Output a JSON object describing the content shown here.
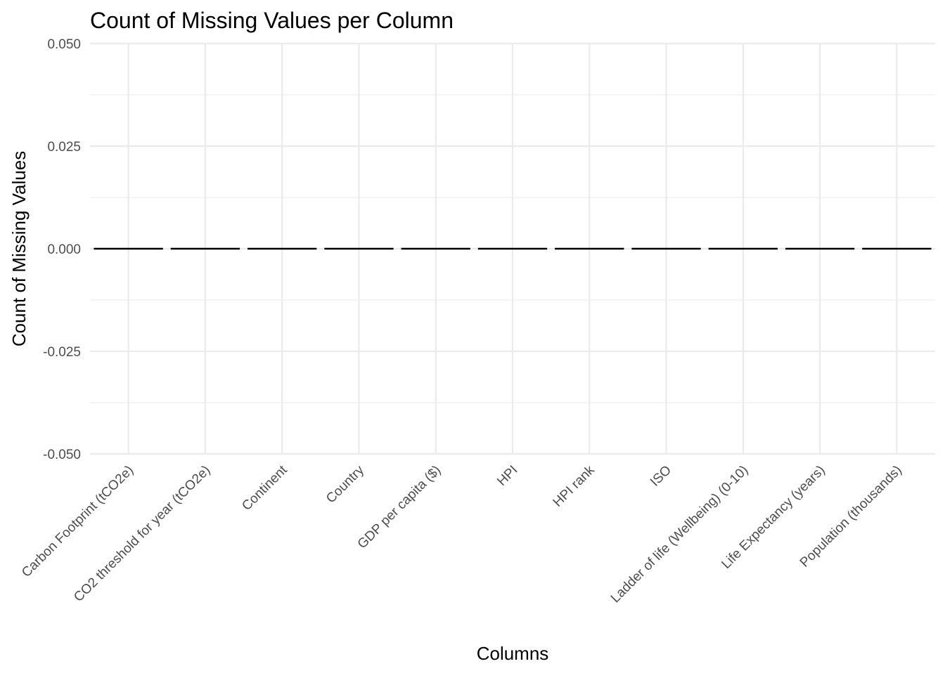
{
  "chart_data": {
    "type": "bar",
    "title": "Count of Missing Values per Column",
    "xlabel": "Columns",
    "ylabel": "Count of Missing Values",
    "categories": [
      "Carbon Footprint (tCO2e)",
      "CO2 threshold for year  (tCO2e)",
      "Continent",
      "Country",
      "GDP per capita ($)",
      "HPI",
      "HPI rank",
      "ISO",
      "Ladder of life (Wellbeing) (0-10)",
      "Life Expectancy (years)",
      "Population (thousands)"
    ],
    "values": [
      0,
      0,
      0,
      0,
      0,
      0,
      0,
      0,
      0,
      0,
      0
    ],
    "ylim": [
      -0.05,
      0.05
    ],
    "yticks": [
      -0.05,
      -0.025,
      0,
      0.025,
      0.05
    ],
    "ytick_labels": [
      "-0.050",
      "-0.025",
      "0.000",
      "0.025",
      "0.050"
    ],
    "grid": true,
    "legend": "none",
    "colors": {
      "bar_outline": "#000000",
      "grid": "#ebebeb",
      "tick_text": "#4d4d4d",
      "background": "#ffffff"
    }
  }
}
